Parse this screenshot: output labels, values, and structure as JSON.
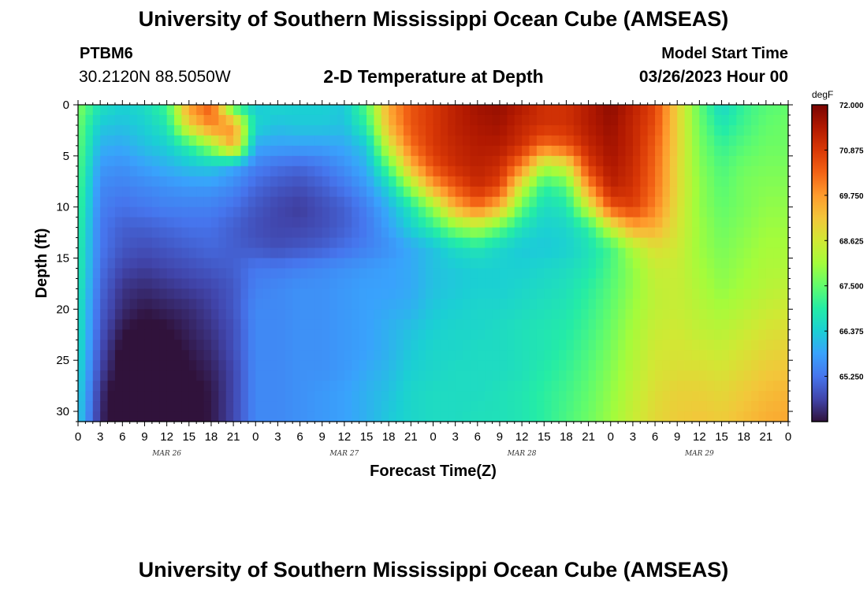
{
  "header": {
    "title": "University of Southern Mississippi Ocean Cube (AMSEAS)",
    "station_id": "PTBM6",
    "station_coords": "30.2120N  88.5050W",
    "subtitle": "2-D Temperature at Depth",
    "model_start_label": "Model Start Time",
    "model_start_value": "03/26/2023 Hour 00"
  },
  "footer": {
    "title": "University of Southern Mississippi Ocean Cube (AMSEAS)"
  },
  "chart_data": {
    "type": "heatmap",
    "title": "2-D Temperature at Depth",
    "xlabel": "Forecast Time(Z)",
    "ylabel": "Depth (ft)",
    "x_hours": [
      0,
      3,
      6,
      9,
      12,
      15,
      18,
      21,
      24,
      27,
      30,
      33,
      36,
      39,
      42,
      45,
      48,
      51,
      54,
      57,
      60,
      63,
      66,
      69,
      72,
      75,
      78,
      81,
      84,
      87,
      90,
      93,
      96
    ],
    "x_tick_labels": [
      "0",
      "3",
      "6",
      "9",
      "12",
      "15",
      "18",
      "21",
      "0",
      "3",
      "6",
      "9",
      "12",
      "15",
      "18",
      "21",
      "0",
      "3",
      "6",
      "9",
      "12",
      "15",
      "18",
      "21",
      "0",
      "3",
      "6",
      "9",
      "12",
      "15",
      "18",
      "21",
      "0"
    ],
    "date_labels": [
      {
        "text": "MAR 26",
        "hour": 12
      },
      {
        "text": "MAR 27",
        "hour": 36
      },
      {
        "text": "MAR 28",
        "hour": 60
      },
      {
        "text": "MAR 29",
        "hour": 84
      }
    ],
    "xlim": [
      0,
      96
    ],
    "y_depths": [
      0,
      2,
      4,
      6,
      8,
      10,
      12,
      14,
      16,
      18,
      20,
      22,
      24,
      26,
      28,
      31
    ],
    "y_tick_values": [
      0,
      5,
      10,
      15,
      20,
      25,
      30
    ],
    "ylim": [
      31,
      0
    ],
    "z_values": [
      [
        67.8,
        66.7,
        66.4,
        66.6,
        67.2,
        69.8,
        70.5,
        67.0,
        66.3,
        66.5,
        66.4,
        66.4,
        66.3,
        67.4,
        69.6,
        70.5,
        70.9,
        71.3,
        71.6,
        71.7,
        71.4,
        71.0,
        71.0,
        71.4,
        71.8,
        71.3,
        70.7,
        69.0,
        67.5,
        66.5,
        67.1,
        67.4,
        67.5
      ],
      [
        67.6,
        66.3,
        66.2,
        66.4,
        66.8,
        69.0,
        70.0,
        69.8,
        66.5,
        66.2,
        66.3,
        66.3,
        66.2,
        67.0,
        69.4,
        70.5,
        70.9,
        71.3,
        71.5,
        71.6,
        71.2,
        71.0,
        71.0,
        71.4,
        71.7,
        71.2,
        70.6,
        69.0,
        67.6,
        66.8,
        67.2,
        67.5,
        67.6
      ],
      [
        67.5,
        66.0,
        65.9,
        66.2,
        66.4,
        67.0,
        68.0,
        69.6,
        65.9,
        65.8,
        65.8,
        65.8,
        65.9,
        66.3,
        68.6,
        70.2,
        70.9,
        71.2,
        71.4,
        71.4,
        71.0,
        70.2,
        70.5,
        71.2,
        71.6,
        71.2,
        70.4,
        69.0,
        67.7,
        67.1,
        67.4,
        67.6,
        67.6
      ],
      [
        67.4,
        65.7,
        65.6,
        65.8,
        66.0,
        66.2,
        66.3,
        65.9,
        65.4,
        65.2,
        65.1,
        65.3,
        65.6,
        66.0,
        67.4,
        69.4,
        70.6,
        71.1,
        71.3,
        71.1,
        70.0,
        68.2,
        68.6,
        70.8,
        71.5,
        71.1,
        70.3,
        68.9,
        67.8,
        67.3,
        67.6,
        67.7,
        67.7
      ],
      [
        67.3,
        65.5,
        65.4,
        65.5,
        65.6,
        65.7,
        65.7,
        65.5,
        65.1,
        64.9,
        64.8,
        65.0,
        65.3,
        65.7,
        66.5,
        68.0,
        69.6,
        70.5,
        71.1,
        70.7,
        68.5,
        67.0,
        67.4,
        69.8,
        71.3,
        71.0,
        70.2,
        68.9,
        67.9,
        67.4,
        67.7,
        67.8,
        67.8
      ],
      [
        67.2,
        65.4,
        65.2,
        65.3,
        65.4,
        65.4,
        65.4,
        65.2,
        64.9,
        64.7,
        64.6,
        64.8,
        65.0,
        65.4,
        66.0,
        66.8,
        68.0,
        69.5,
        70.2,
        69.4,
        67.5,
        66.6,
        66.8,
        68.5,
        70.5,
        70.8,
        70.0,
        68.8,
        67.9,
        67.5,
        67.7,
        67.9,
        67.9
      ],
      [
        67.1,
        65.3,
        65.0,
        65.0,
        65.1,
        65.2,
        65.2,
        65.0,
        64.8,
        64.7,
        64.7,
        64.8,
        65.0,
        65.3,
        65.8,
        66.4,
        67.0,
        67.8,
        68.2,
        67.5,
        66.7,
        66.4,
        66.5,
        67.0,
        68.5,
        69.6,
        69.5,
        68.7,
        68.0,
        67.6,
        67.8,
        68.0,
        68.0
      ],
      [
        67.0,
        65.3,
        64.9,
        64.8,
        64.9,
        65.0,
        65.1,
        65.0,
        64.9,
        64.8,
        64.9,
        65.0,
        65.2,
        65.4,
        65.6,
        65.9,
        66.2,
        66.6,
        66.8,
        66.5,
        66.3,
        66.3,
        66.4,
        66.7,
        67.2,
        68.2,
        68.8,
        68.6,
        68.0,
        67.7,
        67.9,
        68.1,
        68.1
      ],
      [
        67.0,
        65.2,
        64.7,
        64.6,
        64.7,
        64.8,
        64.9,
        65.0,
        65.3,
        65.3,
        65.4,
        65.5,
        65.6,
        65.7,
        65.8,
        65.9,
        66.2,
        66.3,
        66.4,
        66.4,
        66.4,
        66.5,
        66.6,
        66.8,
        67.3,
        67.9,
        68.5,
        68.5,
        68.1,
        67.8,
        68.0,
        68.2,
        68.2
      ],
      [
        66.9,
        65.1,
        64.5,
        64.4,
        64.5,
        64.6,
        64.7,
        64.9,
        65.4,
        65.5,
        65.6,
        65.6,
        65.7,
        65.8,
        65.8,
        65.9,
        66.2,
        66.3,
        66.4,
        66.4,
        66.5,
        66.6,
        66.7,
        67.0,
        67.4,
        67.9,
        68.4,
        68.5,
        68.2,
        67.9,
        68.1,
        68.3,
        68.4
      ],
      [
        66.8,
        65.0,
        64.4,
        64.2,
        64.3,
        64.4,
        64.6,
        64.9,
        65.5,
        65.5,
        65.6,
        65.6,
        65.7,
        65.8,
        65.9,
        66.0,
        66.3,
        66.4,
        66.5,
        66.5,
        66.6,
        66.7,
        66.8,
        67.1,
        67.5,
        68.0,
        68.4,
        68.5,
        68.3,
        68.1,
        68.3,
        68.5,
        68.6
      ],
      [
        66.8,
        64.9,
        64.2,
        64.0,
        64.1,
        64.3,
        64.5,
        64.8,
        65.5,
        65.5,
        65.6,
        65.6,
        65.7,
        65.8,
        66.0,
        66.2,
        66.4,
        66.5,
        66.5,
        66.6,
        66.7,
        66.8,
        66.9,
        67.2,
        67.6,
        68.1,
        68.5,
        68.6,
        68.4,
        68.3,
        68.5,
        68.7,
        68.8
      ],
      [
        66.7,
        64.8,
        64.0,
        63.8,
        64.0,
        64.2,
        64.4,
        64.8,
        65.5,
        65.5,
        65.6,
        65.6,
        65.7,
        65.8,
        66.0,
        66.3,
        66.5,
        66.5,
        66.6,
        66.6,
        66.7,
        66.8,
        67.0,
        67.3,
        67.7,
        68.2,
        68.6,
        68.7,
        68.6,
        68.5,
        68.7,
        68.9,
        69.0
      ],
      [
        66.6,
        64.7,
        63.9,
        63.6,
        63.8,
        64.1,
        64.3,
        64.7,
        65.5,
        65.5,
        65.6,
        65.6,
        65.7,
        65.9,
        66.1,
        66.4,
        66.5,
        66.6,
        66.6,
        66.6,
        66.7,
        66.9,
        67.1,
        67.4,
        67.8,
        68.3,
        68.7,
        68.8,
        68.8,
        68.7,
        68.9,
        69.1,
        69.2
      ],
      [
        66.5,
        64.5,
        63.7,
        63.5,
        63.7,
        64.0,
        64.2,
        64.7,
        65.5,
        65.5,
        65.6,
        65.7,
        65.8,
        66.0,
        66.2,
        66.5,
        66.6,
        66.6,
        66.6,
        66.7,
        66.8,
        67.0,
        67.2,
        67.5,
        67.9,
        68.4,
        68.8,
        69.0,
        69.0,
        68.9,
        69.1,
        69.3,
        69.4
      ],
      [
        66.4,
        64.4,
        63.6,
        63.4,
        63.6,
        63.9,
        64.2,
        64.7,
        65.5,
        65.5,
        65.6,
        65.7,
        65.8,
        66.0,
        66.3,
        66.5,
        66.6,
        66.6,
        66.7,
        66.7,
        66.8,
        67.0,
        67.3,
        67.6,
        68.0,
        68.5,
        68.9,
        69.1,
        69.2,
        69.1,
        69.3,
        69.5,
        69.6
      ]
    ],
    "colorbar": {
      "unit": "degF",
      "ticks": [
        65.25,
        66.375,
        67.5,
        68.625,
        69.75,
        70.875,
        72.0
      ],
      "tick_labels": [
        "65.250",
        "66.375",
        "67.500",
        "68.625",
        "69.750",
        "70.875",
        "72.000"
      ],
      "range": [
        64.125,
        72.0
      ],
      "colors": [
        "#30123b",
        "#4145ab",
        "#4675ed",
        "#39a2fc",
        "#1bcfd4",
        "#24eca6",
        "#61fc6c",
        "#a4fc3b",
        "#d1e834",
        "#f3c63a",
        "#fe9b2d",
        "#f36315",
        "#d93806",
        "#b11901",
        "#7a0402"
      ]
    },
    "legend_position": "right"
  }
}
